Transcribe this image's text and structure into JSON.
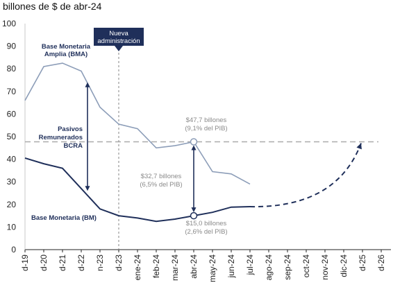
{
  "chart_data": {
    "type": "line",
    "title": "billones de $ de abr-24",
    "xlabel": "",
    "ylabel": "",
    "ylim": [
      0,
      100
    ],
    "yticks": [
      0,
      10,
      20,
      30,
      40,
      50,
      60,
      70,
      80,
      90,
      100
    ],
    "grid": false,
    "categories": [
      "d-19",
      "d-20",
      "d-21",
      "d-22",
      "n-23",
      "d-23",
      "ene-24",
      "feb-24",
      "mar-24",
      "abr-24",
      "may-24",
      "jun-24",
      "jul-24",
      "ago-24",
      "sep-24",
      "oct-24",
      "nov-24",
      "dic-24",
      "d-25",
      "d-26"
    ],
    "series": [
      {
        "name": "Base Monetaria Amplia (BMA)",
        "color": "#8c9db8",
        "points": [
          [
            "d-19",
            66
          ],
          [
            "d-20",
            81
          ],
          [
            "d-21",
            82.5
          ],
          [
            "d-22",
            79
          ],
          [
            "n-23",
            63
          ],
          [
            "d-23",
            55.5
          ],
          [
            "ene-24",
            53.5
          ],
          [
            "feb-24",
            45
          ],
          [
            "mar-24",
            46
          ],
          [
            "abr-24",
            47.7
          ],
          [
            "may-24",
            34.5
          ],
          [
            "jun-24",
            33.5
          ],
          [
            "jul-24",
            29
          ]
        ]
      },
      {
        "name": "Base Monetaria (BM)",
        "color": "#1f2f5a",
        "points": [
          [
            "d-19",
            40.5
          ],
          [
            "d-20",
            38
          ],
          [
            "d-21",
            36
          ],
          [
            "d-22",
            27
          ],
          [
            "n-23",
            18
          ],
          [
            "d-23",
            15
          ],
          [
            "ene-24",
            14
          ],
          [
            "feb-24",
            12.5
          ],
          [
            "mar-24",
            13.5
          ],
          [
            "abr-24",
            15
          ],
          [
            "may-24",
            16.5
          ],
          [
            "jun-24",
            18.8
          ],
          [
            "jul-24",
            19
          ]
        ]
      },
      {
        "name": "",
        "style": "dashed",
        "color": "#1f2f5a",
        "points": [
          [
            "jul-24",
            19
          ],
          [
            "d-25",
            47.7
          ]
        ]
      }
    ],
    "reference_line": {
      "y": 47.7,
      "style": "dashed",
      "color": "#aaaaaa"
    },
    "vertical_line": {
      "x": "d-23",
      "style": "dashed",
      "label": "Nueva administración"
    },
    "annotations": {
      "bma_label": [
        "Base Monetaria",
        "Amplia (BMA)"
      ],
      "bm_label": "Base Monetaria (BM)",
      "pasivos_label": [
        "Pasivos",
        "Remunerados",
        "BCRA"
      ],
      "top_value": [
        "$47,7 billones",
        "(9,1% del PIB)"
      ],
      "mid_value": [
        "$32,7 billones",
        "(6,5% del PIB)"
      ],
      "bottom_value": [
        "$15,0 billones",
        "(2,6% del PIB)"
      ],
      "nueva_admin": [
        "Nueva",
        "administración"
      ]
    },
    "colors": {
      "dark": "#1f2f5a",
      "light": "#8c9db8",
      "grey_text": "#8a8a8a"
    }
  }
}
